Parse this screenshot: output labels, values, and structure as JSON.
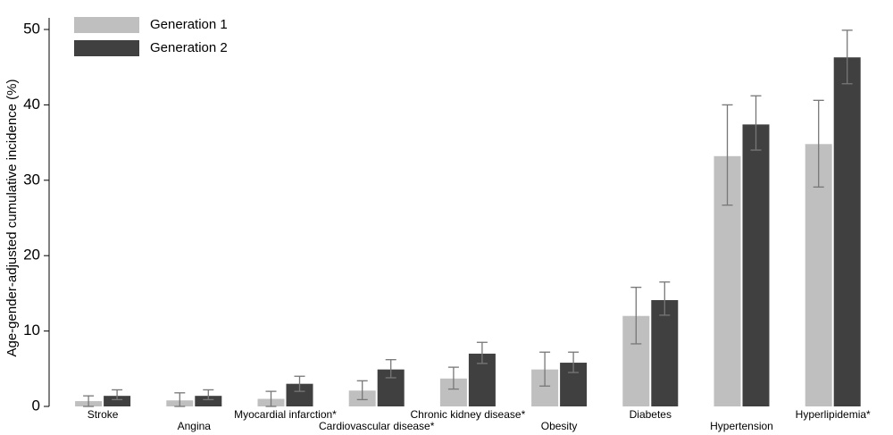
{
  "chart_data": {
    "type": "bar",
    "y_label": "Age-gender-adjusted cumulative incidence (%)",
    "categories": [
      "Stroke",
      "Angina",
      "Myocardial infarction*",
      "Cardiovascular disease*",
      "Chronic kidney disease*",
      "Obesity",
      "Diabetes",
      "Hypertension",
      "Hyperlipidemia*"
    ],
    "series": [
      {
        "name": "Generation 1",
        "color": "#bfbfbf",
        "values": [
          0.7,
          0.8,
          1.0,
          2.1,
          3.7,
          4.9,
          12.0,
          33.2,
          34.8
        ],
        "lower": [
          0.0,
          0.0,
          0.0,
          0.9,
          2.3,
          2.7,
          8.3,
          26.7,
          29.1
        ],
        "upper": [
          1.4,
          1.8,
          2.0,
          3.4,
          5.2,
          7.2,
          15.8,
          40.0,
          40.6
        ]
      },
      {
        "name": "Generation 2",
        "color": "#404040",
        "values": [
          1.4,
          1.4,
          3.0,
          4.9,
          7.0,
          5.8,
          14.1,
          37.4,
          46.3
        ],
        "lower": [
          0.9,
          0.9,
          2.0,
          3.8,
          5.7,
          4.5,
          12.1,
          34.0,
          42.8
        ],
        "upper": [
          2.2,
          2.2,
          4.0,
          6.2,
          8.5,
          7.2,
          16.5,
          41.2,
          49.9
        ]
      }
    ],
    "errorbar_color": "#777777",
    "ylim": [
      0,
      50
    ],
    "yticks": [
      0,
      10,
      20,
      30,
      40,
      50
    ],
    "grid": false,
    "legend": "top-left"
  }
}
